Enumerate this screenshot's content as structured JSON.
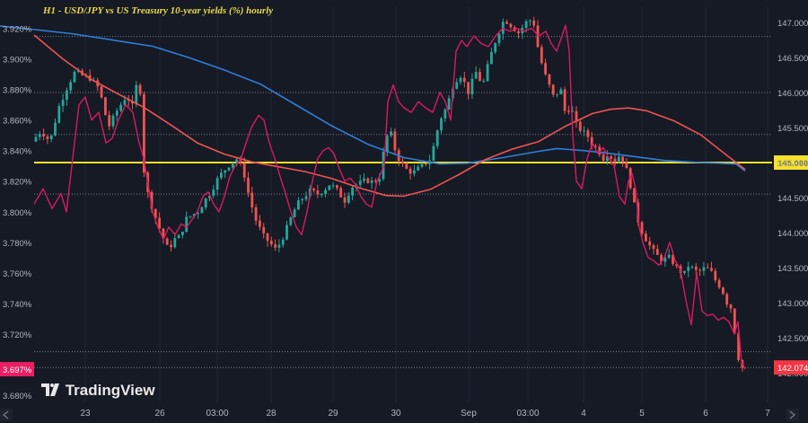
{
  "chart_data": {
    "type": "line",
    "title": "H1 - USD/JPY vs US Treasury 10-year yields (%) hourly",
    "x_ticks": [
      "23",
      "26",
      "03:00",
      "28",
      "29",
      "30",
      "Sep",
      "03:00",
      "4",
      "5",
      "6",
      "7"
    ],
    "left_axis": {
      "ticks": [
        "3.920%",
        "3.900%",
        "3.880%",
        "3.860%",
        "3.840%",
        "3.820%",
        "3.800%",
        "3.780%",
        "3.760%",
        "3.740%",
        "3.720%",
        "3.700%",
        "3.680%"
      ],
      "ylim": [
        3.68,
        3.925
      ]
    },
    "right_axis": {
      "ticks": [
        "147.000",
        "146.500",
        "146.000",
        "145.500",
        "145.000",
        "144.500",
        "144.000",
        "143.500",
        "143.000",
        "142.500",
        "142.000"
      ],
      "ylim": [
        141.9,
        147.2
      ]
    },
    "horizontal_lines": [
      {
        "value": 145.0,
        "color": "#f5e12c",
        "style": "solid",
        "label": "145.000"
      },
      {
        "value": 146.8,
        "color": "#9aa0ad",
        "style": "dotted"
      },
      {
        "value": 146.0,
        "color": "#9aa0ad",
        "style": "dotted"
      },
      {
        "value": 145.4,
        "color": "#9aa0ad",
        "style": "dotted"
      },
      {
        "value": 144.55,
        "color": "#9aa0ad",
        "style": "dotted"
      },
      {
        "value": 142.3,
        "color": "#9aa0ad",
        "style": "dotted"
      },
      {
        "value": 142.074,
        "color": "#9aa0ad",
        "style": "dotted"
      }
    ],
    "price_label": {
      "value": 142.074,
      "text": "142.074",
      "color": "#f23645"
    },
    "yield_label": {
      "value": 3.697,
      "text": "3.697%",
      "color": "#e91e63"
    },
    "series": [
      {
        "kind": "ma",
        "axis": "right",
        "color": "#2e7fd9",
        "x": [
          0,
          30,
          80,
          130,
          170,
          210,
          250,
          290,
          330,
          370,
          410,
          450,
          490,
          520,
          560,
          600,
          620,
          650,
          680,
          710,
          740,
          780,
          820,
          830
        ],
        "y": [
          146.95,
          146.91,
          146.84,
          146.74,
          146.66,
          146.5,
          146.32,
          146.12,
          145.82,
          145.52,
          145.26,
          145.07,
          144.98,
          144.99,
          145.07,
          145.16,
          145.2,
          145.17,
          145.13,
          145.08,
          145.03,
          145.0,
          144.98,
          144.88
        ]
      },
      {
        "kind": "ma",
        "axis": "right",
        "color": "#ef5350",
        "x": [
          38,
          70,
          100,
          130,
          160,
          190,
          220,
          250,
          280,
          310,
          340,
          370,
          400,
          430,
          450,
          480,
          510,
          540,
          570,
          600,
          630,
          660,
          680,
          700,
          720,
          750,
          780,
          810,
          830
        ],
        "y": [
          146.82,
          146.48,
          146.2,
          145.99,
          145.79,
          145.54,
          145.28,
          145.12,
          145.01,
          144.94,
          144.87,
          144.77,
          144.64,
          144.53,
          144.52,
          144.62,
          144.82,
          145.04,
          145.19,
          145.3,
          145.52,
          145.7,
          145.76,
          145.78,
          145.74,
          145.6,
          145.4,
          145.1,
          144.9
        ]
      },
      {
        "kind": "line",
        "axis": "left",
        "color": "#d81b60",
        "x": [
          38,
          48,
          58,
          68,
          74,
          80,
          88,
          95,
          102,
          110,
          118,
          125,
          132,
          140,
          148,
          155,
          160,
          165,
          170,
          176,
          182,
          188,
          195,
          202,
          208,
          214,
          220,
          226,
          232,
          238,
          244,
          250,
          256,
          262,
          268,
          274,
          280,
          288,
          294,
          300,
          306,
          312,
          318,
          324,
          330,
          336,
          342,
          348,
          354,
          360,
          366,
          372,
          378,
          384,
          390,
          396,
          402,
          408,
          414,
          420,
          428,
          432,
          438,
          444,
          450,
          458,
          466,
          474,
          482,
          490,
          496,
          502,
          508,
          514,
          520,
          528,
          536,
          544,
          552,
          560,
          568,
          576,
          584,
          592,
          600,
          608,
          614,
          620,
          626,
          630,
          634,
          638,
          642,
          648,
          654,
          660,
          666,
          672,
          678,
          684,
          690,
          696,
          700,
          704,
          708,
          712,
          716,
          722,
          728,
          734,
          740,
          746,
          752,
          758,
          764,
          770,
          776,
          782,
          788,
          794,
          800,
          806,
          812,
          818,
          822,
          826,
          830
        ],
        "y": [
          3.805,
          3.815,
          3.802,
          3.812,
          3.8,
          3.83,
          3.87,
          3.875,
          3.86,
          3.865,
          3.845,
          3.848,
          3.86,
          3.87,
          3.865,
          3.845,
          3.835,
          3.818,
          3.8,
          3.79,
          3.782,
          3.79,
          3.785,
          3.792,
          3.79,
          3.795,
          3.8,
          3.81,
          3.813,
          3.805,
          3.8,
          3.81,
          3.823,
          3.83,
          3.834,
          3.845,
          3.855,
          3.863,
          3.86,
          3.845,
          3.835,
          3.823,
          3.812,
          3.8,
          3.79,
          3.785,
          3.8,
          3.82,
          3.835,
          3.84,
          3.842,
          3.838,
          3.828,
          3.82,
          3.822,
          3.818,
          3.81,
          3.805,
          3.803,
          3.82,
          3.83,
          3.872,
          3.883,
          3.872,
          3.868,
          3.865,
          3.872,
          3.868,
          3.865,
          3.878,
          3.872,
          3.86,
          3.905,
          3.912,
          3.908,
          3.915,
          3.91,
          3.908,
          3.915,
          3.92,
          3.918,
          3.92,
          3.918,
          3.92,
          3.915,
          3.918,
          3.91,
          3.905,
          3.915,
          3.922,
          3.905,
          3.85,
          3.82,
          3.815,
          3.835,
          3.845,
          3.838,
          3.842,
          3.835,
          3.83,
          3.81,
          3.805,
          3.82,
          3.825,
          3.815,
          3.79,
          3.78,
          3.77,
          3.768,
          3.765,
          3.77,
          3.78,
          3.768,
          3.762,
          3.742,
          3.726,
          3.76,
          3.735,
          3.732,
          3.733,
          3.729,
          3.731,
          3.728,
          3.72,
          3.728,
          3.702,
          3.697
        ]
      },
      {
        "kind": "price_path",
        "axis": "right",
        "up_color": "#26a69a",
        "down_color": "#ef5350",
        "x": [
          40,
          50,
          60,
          70,
          80,
          88,
          95,
          105,
          115,
          125,
          135,
          145,
          152,
          157,
          160,
          165,
          170,
          178,
          185,
          192,
          198,
          205,
          212,
          218,
          225,
          232,
          240,
          248,
          255,
          262,
          268,
          275,
          282,
          290,
          298,
          305,
          312,
          320,
          328,
          335,
          342,
          350,
          358,
          365,
          372,
          380,
          388,
          396,
          404,
          412,
          420,
          428,
          432,
          438,
          446,
          455,
          464,
          474,
          484,
          494,
          502,
          510,
          518,
          526,
          534,
          542,
          550,
          558,
          566,
          574,
          582,
          590,
          598,
          604,
          610,
          616,
          622,
          628,
          634,
          640,
          646,
          652,
          658,
          664,
          670,
          676,
          682,
          688,
          694,
          700,
          705,
          708,
          712,
          718,
          726,
          734,
          742,
          750,
          758,
          766,
          772,
          778,
          784,
          790,
          796,
          802,
          808,
          814,
          820,
          825,
          830
        ],
        "y": [
          145.3,
          145.45,
          145.3,
          145.8,
          146.1,
          146.3,
          146.25,
          146.2,
          146.05,
          145.5,
          145.75,
          145.95,
          145.8,
          146.15,
          146.12,
          144.8,
          144.5,
          144.2,
          143.95,
          143.75,
          143.9,
          143.95,
          144.2,
          144.25,
          144.3,
          144.45,
          144.6,
          144.8,
          144.9,
          145.0,
          145.05,
          144.9,
          144.5,
          144.15,
          143.95,
          143.85,
          143.75,
          143.95,
          144.2,
          144.4,
          144.5,
          144.6,
          144.55,
          144.6,
          144.7,
          144.6,
          144.45,
          144.65,
          144.7,
          144.75,
          144.72,
          144.8,
          145.2,
          145.5,
          145.1,
          144.92,
          144.85,
          144.95,
          145.05,
          145.6,
          145.8,
          146.15,
          146.25,
          146.0,
          146.3,
          146.1,
          146.5,
          146.8,
          147.05,
          146.95,
          146.85,
          147.0,
          147.05,
          146.6,
          146.3,
          146.1,
          145.9,
          146.1,
          145.7,
          145.8,
          145.55,
          145.45,
          145.4,
          145.25,
          145.2,
          145.05,
          145.15,
          145.0,
          145.1,
          145.0,
          144.75,
          144.6,
          144.3,
          144.05,
          143.85,
          143.7,
          143.6,
          143.65,
          143.5,
          143.4,
          143.55,
          143.45,
          143.45,
          143.5,
          143.45,
          143.3,
          143.2,
          143.0,
          142.9,
          142.3,
          142.07
        ]
      }
    ]
  }
}
